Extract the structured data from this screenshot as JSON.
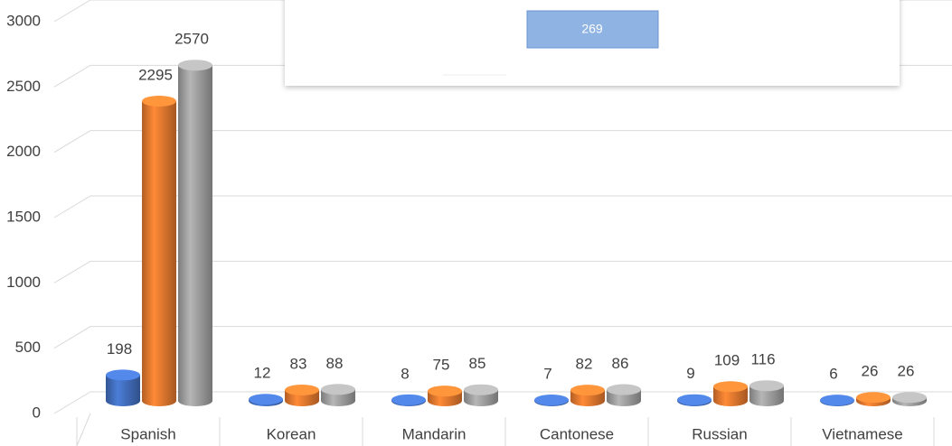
{
  "chart_data": {
    "type": "bar3d",
    "categories": [
      "Spanish",
      "Korean",
      "Mandarin",
      "Cantonese",
      "Russian",
      "Vietnamese"
    ],
    "series": [
      {
        "color": "#4472c4",
        "values": [
          198,
          12,
          8,
          7,
          9,
          6
        ]
      },
      {
        "color": "#ed7d31",
        "values": [
          2295,
          83,
          75,
          82,
          109,
          26
        ]
      },
      {
        "color": "#a5a5a5",
        "values": [
          2570,
          88,
          85,
          86,
          116,
          26
        ]
      }
    ],
    "ylim": [
      0,
      3000
    ],
    "yticks": [
      0,
      500,
      1000,
      1500,
      2000,
      2500,
      3000
    ],
    "grid": true,
    "annotation": "269"
  }
}
